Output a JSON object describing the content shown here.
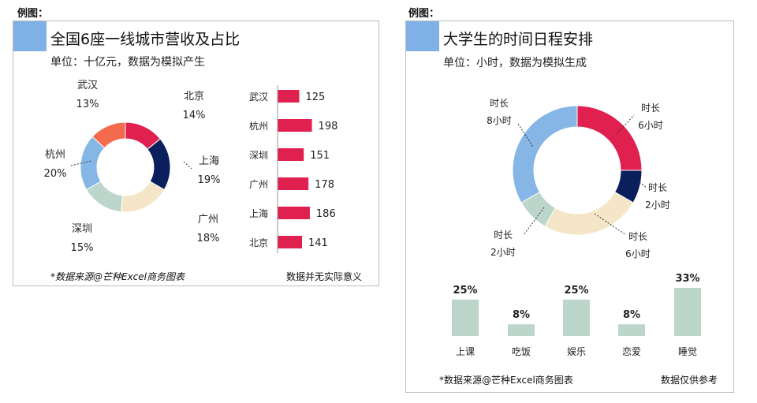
{
  "colors": {
    "accent_block": "#7fb1e6",
    "crimson": "#e0214f",
    "navy": "#0b1f5c",
    "beige": "#f4e6c6",
    "sage": "#bdd6cc",
    "blue": "#86b6e6",
    "coral": "#f36a4e"
  },
  "left": {
    "example_label": "例图：",
    "title": "全国6座一线城市营收及占比",
    "subtitle": "单位：十亿元，数据为模拟产生",
    "footer_left": "*数据来源@芒种Excel商务图表",
    "footer_right": "数据并无实际意义"
  },
  "right": {
    "example_label": "例图：",
    "title": "大学生的时间日程安排",
    "subtitle": "单位：小时，数据为模拟生成",
    "footer_left": "*数据来源@芒种Excel商务图表",
    "footer_right": "数据仅供参考"
  },
  "chart_data": [
    {
      "type": "pie",
      "variant": "donut",
      "slices": [
        {
          "label": "北京",
          "pct": "14%",
          "value": 14,
          "color": "#e0214f"
        },
        {
          "label": "上海",
          "pct": "19%",
          "value": 19,
          "color": "#0b1f5c"
        },
        {
          "label": "广州",
          "pct": "18%",
          "value": 18,
          "color": "#f4e6c6"
        },
        {
          "label": "深圳",
          "pct": "15%",
          "value": 15,
          "color": "#bdd6cc"
        },
        {
          "label": "杭州",
          "pct": "20%",
          "value": 20,
          "color": "#86b6e6"
        },
        {
          "label": "武汉",
          "pct": "13%",
          "value": 13,
          "color": "#f36a4e"
        }
      ]
    },
    {
      "type": "bar",
      "orientation": "horizontal",
      "categories": [
        "武汉",
        "杭州",
        "深圳",
        "广州",
        "上海",
        "北京"
      ],
      "values": [
        125,
        198,
        151,
        178,
        186,
        141
      ],
      "color": "#e0214f",
      "xlim": [
        0,
        200
      ]
    },
    {
      "type": "pie",
      "variant": "donut",
      "slices": [
        {
          "label": "时长",
          "value_label": "6小时",
          "value": 6,
          "color": "#e0214f"
        },
        {
          "label": "时长",
          "value_label": "2小时",
          "value": 2,
          "color": "#0b1f5c"
        },
        {
          "label": "时长",
          "value_label": "6小时",
          "value": 6,
          "color": "#f4e6c6"
        },
        {
          "label": "时长",
          "value_label": "2小时",
          "value": 2,
          "color": "#bdd6cc"
        },
        {
          "label": "时长",
          "value_label": "8小时",
          "value": 8,
          "color": "#86b6e6"
        }
      ]
    },
    {
      "type": "bar",
      "orientation": "vertical",
      "categories": [
        "上课",
        "吃饭",
        "娱乐",
        "恋爱",
        "睡觉"
      ],
      "values": [
        25,
        8,
        25,
        8,
        33
      ],
      "value_labels": [
        "25%",
        "8%",
        "25%",
        "8%",
        "33%"
      ],
      "color": "#bdd6cc",
      "ylim": [
        0,
        33
      ]
    }
  ]
}
